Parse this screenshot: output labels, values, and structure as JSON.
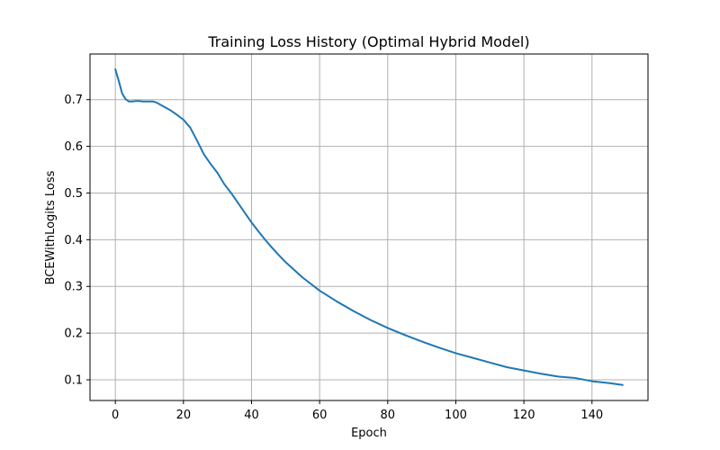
{
  "chart_data": {
    "type": "line",
    "title": "Training Loss History (Optimal Hybrid Model)",
    "xlabel": "Epoch",
    "ylabel": "BCEWithLogits Loss",
    "xlim": [
      -7.45,
      156.45
    ],
    "ylim": [
      0.0557,
      0.7977
    ],
    "xticks": [
      0,
      20,
      40,
      60,
      80,
      100,
      120,
      140
    ],
    "yticks": [
      0.1,
      0.2,
      0.3,
      0.4,
      0.5,
      0.6,
      0.7
    ],
    "xtick_labels": [
      "0",
      "20",
      "40",
      "60",
      "80",
      "100",
      "120",
      "140"
    ],
    "ytick_labels": [
      "0.1",
      "0.2",
      "0.3",
      "0.4",
      "0.5",
      "0.6",
      "0.7"
    ],
    "grid": true,
    "series": [
      {
        "color": "#1f77b4",
        "x": [
          0,
          1,
          2,
          3,
          4,
          5,
          6,
          7,
          8,
          9,
          10,
          11,
          12,
          14,
          16,
          18,
          20,
          22,
          24,
          26,
          28,
          30,
          32,
          34,
          36,
          38,
          40,
          42,
          44,
          46,
          48,
          50,
          55,
          60,
          65,
          70,
          75,
          80,
          85,
          90,
          95,
          100,
          105,
          110,
          115,
          120,
          125,
          130,
          135,
          140,
          145,
          149
        ],
        "values": [
          0.765,
          0.74,
          0.713,
          0.701,
          0.696,
          0.696,
          0.697,
          0.697,
          0.696,
          0.696,
          0.696,
          0.696,
          0.694,
          0.686,
          0.678,
          0.668,
          0.657,
          0.64,
          0.612,
          0.583,
          0.562,
          0.543,
          0.519,
          0.5,
          0.479,
          0.458,
          0.437,
          0.418,
          0.4,
          0.383,
          0.367,
          0.352,
          0.319,
          0.291,
          0.268,
          0.247,
          0.228,
          0.211,
          0.196,
          0.182,
          0.169,
          0.157,
          0.147,
          0.137,
          0.127,
          0.12,
          0.113,
          0.107,
          0.104,
          0.097,
          0.093,
          0.089
        ]
      }
    ]
  }
}
